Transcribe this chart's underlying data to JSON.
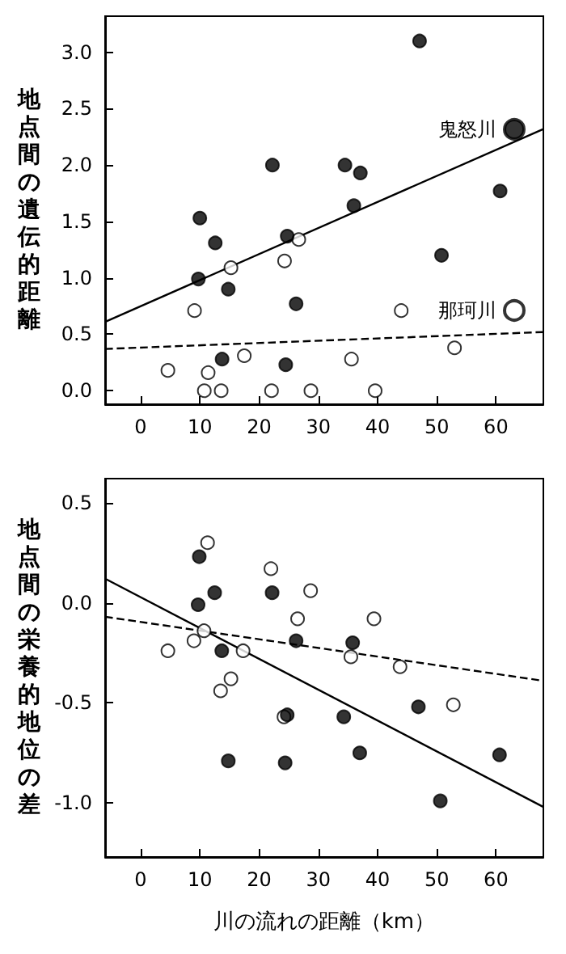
{
  "chart_data": [
    {
      "type": "scatter",
      "ylabel": "地点間の遺伝的距離",
      "xlim": [
        -6,
        68
      ],
      "xticks": [
        0,
        10,
        20,
        30,
        40,
        50,
        60
      ],
      "ylim": [
        -0.12,
        3.32
      ],
      "yticks": [
        {
          "value": 0,
          "label": "0.0"
        },
        {
          "value": 0.5,
          "label": "0.5"
        },
        {
          "value": 1,
          "label": "1.0"
        },
        {
          "value": 1.5,
          "label": "1.5"
        },
        {
          "value": 2,
          "label": "2.0"
        },
        {
          "value": 2.5,
          "label": "2.5"
        },
        {
          "value": 3,
          "label": "3.0"
        }
      ],
      "grid": false,
      "legend": "right",
      "series": [
        {
          "name": "鬼怒川",
          "color": "#000000",
          "marker": "circle",
          "x": [
            10,
            9.75,
            12.6,
            14.8,
            13.75,
            22.25,
            24.75,
            24.5,
            26.25,
            34.5,
            36,
            37.1,
            47.1,
            50.8,
            60.7
          ],
          "values": [
            1.53,
            0.99,
            1.31,
            0.9,
            0.28,
            2.0,
            1.37,
            0.23,
            0.77,
            2.0,
            1.64,
            1.93,
            3.1,
            1.2,
            1.77
          ]
        },
        {
          "name": "那珂川",
          "color": "#ffffff",
          "marker": "circle",
          "x": [
            4.6,
            9.1,
            10.75,
            11.4,
            13.6,
            15.25,
            17.5,
            22.1,
            24.3,
            26.7,
            28.75,
            35.6,
            39.6,
            44,
            53
          ],
          "values": [
            0.18,
            0.71,
            0,
            0.16,
            0,
            1.09,
            0.31,
            0,
            1.15,
            1.34,
            0,
            0.28,
            0,
            0.71,
            0.38
          ]
        },
        {
          "type": "line",
          "color": "#000000",
          "marker": "none",
          "line_style": "solid",
          "x": [
            -6,
            68
          ],
          "values": [
            0.61,
            2.32
          ]
        },
        {
          "type": "line",
          "color": "#000000",
          "marker": "none",
          "line_style": "dashed",
          "x": [
            -6,
            68
          ],
          "values": [
            0.37,
            0.52
          ]
        }
      ]
    },
    {
      "type": "scatter",
      "ylabel": "地点間の栄養的地位の差",
      "xlabel": "川の流れの距離（km）",
      "xlim": [
        -6,
        68
      ],
      "xticks": [
        0,
        10,
        20,
        30,
        40,
        50,
        60
      ],
      "ylim": [
        -1.27,
        0.62
      ],
      "yticks": [
        {
          "value": -1,
          "label": "-1.0"
        },
        {
          "value": -0.5,
          "label": "-0.5"
        },
        {
          "value": 0,
          "label": "0.0"
        },
        {
          "value": 0.5,
          "label": "0.5"
        }
      ],
      "grid": false,
      "series": [
        {
          "color": "#000000",
          "marker": "circle",
          "x": [
            9.9,
            9.7,
            12.5,
            13.7,
            14.8,
            22.2,
            24.75,
            24.4,
            26.25,
            34.3,
            35.8,
            37,
            46.9,
            50.6,
            60.6
          ],
          "values": [
            0.23,
            -0.01,
            0.05,
            -0.24,
            -0.79,
            0.05,
            -0.56,
            -0.8,
            -0.19,
            -0.57,
            -0.2,
            -0.75,
            -0.52,
            -0.99,
            -0.76
          ]
        },
        {
          "color": "#ffffff",
          "marker": "circle",
          "x": [
            4.6,
            9,
            10.7,
            11.3,
            13.5,
            15.25,
            17.3,
            22,
            24.2,
            26.5,
            28.7,
            35.5,
            39.4,
            43.8,
            52.8
          ],
          "values": [
            -0.24,
            -0.19,
            -0.14,
            0.3,
            -0.44,
            -0.38,
            -0.24,
            0.17,
            -0.57,
            -0.08,
            0.06,
            -0.27,
            -0.08,
            -0.32,
            -0.51
          ]
        },
        {
          "type": "line",
          "color": "#000000",
          "marker": "none",
          "line_style": "solid",
          "x": [
            -6,
            68
          ],
          "values": [
            0.12,
            -1.02
          ]
        },
        {
          "type": "line",
          "color": "#000000",
          "marker": "none",
          "line_style": "dashed",
          "x": [
            -6,
            68
          ],
          "values": [
            -0.07,
            -0.39
          ]
        }
      ]
    }
  ]
}
